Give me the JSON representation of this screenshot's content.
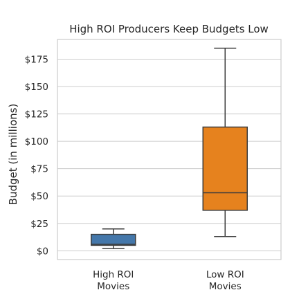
{
  "chart_data": {
    "type": "box",
    "title": "High ROI Producers Keep Budgets Low",
    "xlabel": "",
    "ylabel": "Budget (in millions)",
    "ylim": [
      -8,
      193
    ],
    "yticks": [
      0,
      25,
      50,
      75,
      100,
      125,
      150,
      175
    ],
    "ytick_labels": [
      "$0",
      "$25",
      "$50",
      "$75",
      "$100",
      "$125",
      "$150",
      "$175"
    ],
    "grid": true,
    "legend": "none",
    "categories": [
      {
        "label_lines": [
          "High ROI",
          "Movies"
        ],
        "min": 2,
        "q1": 5,
        "median": 6,
        "q3": 15,
        "max": 20,
        "color": "#4477aa"
      },
      {
        "label_lines": [
          "Low ROI",
          "Movies"
        ],
        "min": 13,
        "q1": 37,
        "median": 53,
        "q3": 113,
        "max": 185,
        "color": "#e6821e"
      }
    ]
  }
}
